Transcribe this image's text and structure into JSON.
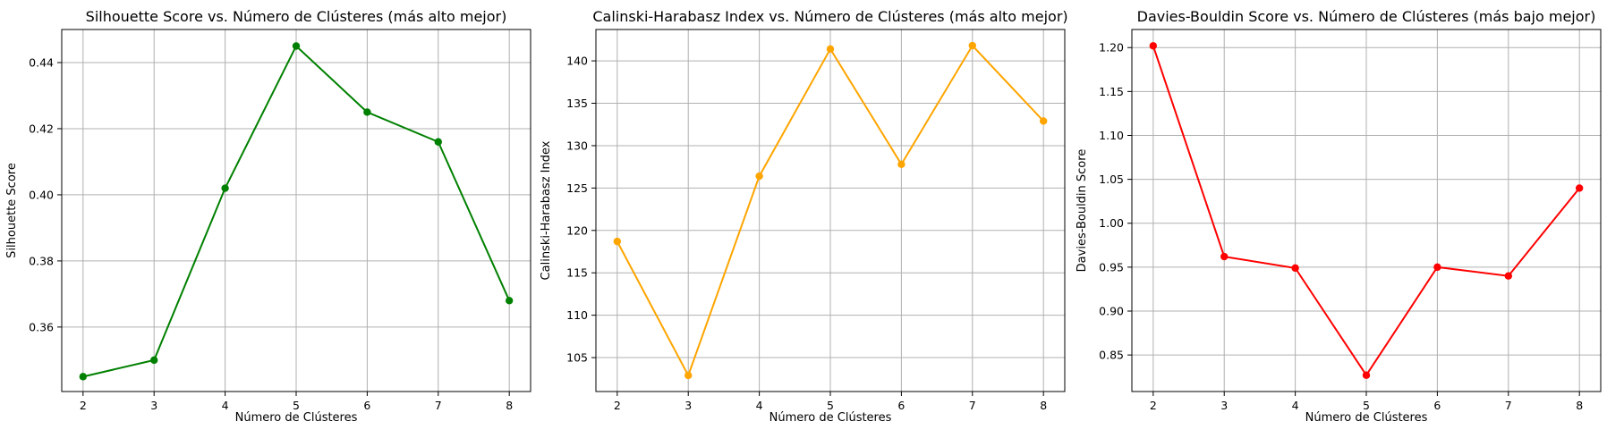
{
  "chart_data": [
    {
      "type": "line",
      "title": "Silhouette Score vs. Número de Clústeres (más alto mejor)",
      "xlabel": "Número de Clústeres",
      "ylabel": "Silhouette Score",
      "x": [
        2,
        3,
        4,
        5,
        6,
        7,
        8
      ],
      "series": [
        {
          "values": [
            0.345,
            0.35,
            0.402,
            0.445,
            0.425,
            0.416,
            0.368
          ],
          "color": "#008000"
        }
      ],
      "xticks": [
        2,
        3,
        4,
        5,
        6,
        7,
        8
      ],
      "yticks": [
        0.36,
        0.38,
        0.4,
        0.42,
        0.44
      ],
      "ytick_labels": [
        "0.36",
        "0.38",
        "0.40",
        "0.42",
        "0.44"
      ],
      "xlim": [
        1.7,
        8.3
      ],
      "ylim": [
        0.3405,
        0.45
      ],
      "grid": true
    },
    {
      "type": "line",
      "title": "Calinski-Harabasz Index vs. Número de Clústeres (más alto mejor)",
      "xlabel": "Número de Clústeres",
      "ylabel": "Calinski-Harabasz Index",
      "x": [
        2,
        3,
        4,
        5,
        6,
        7,
        8
      ],
      "series": [
        {
          "values": [
            118.7,
            102.9,
            126.4,
            141.4,
            127.8,
            141.8,
            132.9
          ],
          "color": "#FFA500"
        }
      ],
      "xticks": [
        2,
        3,
        4,
        5,
        6,
        7,
        8
      ],
      "yticks": [
        105,
        110,
        115,
        120,
        125,
        130,
        135,
        140
      ],
      "ytick_labels": [
        "105",
        "110",
        "115",
        "120",
        "125",
        "130",
        "135",
        "140"
      ],
      "xlim": [
        1.7,
        8.3
      ],
      "ylim": [
        101.0,
        143.7
      ],
      "grid": true
    },
    {
      "type": "line",
      "title": "Davies-Bouldin Score vs. Número de Clústeres (más bajo mejor)",
      "xlabel": "Número de Clústeres",
      "ylabel": "Davies-Bouldin Score",
      "x": [
        2,
        3,
        4,
        5,
        6,
        7,
        8
      ],
      "series": [
        {
          "values": [
            1.202,
            0.962,
            0.949,
            0.827,
            0.95,
            0.94,
            1.04
          ],
          "color": "#FF0000"
        }
      ],
      "xticks": [
        2,
        3,
        4,
        5,
        6,
        7,
        8
      ],
      "yticks": [
        0.85,
        0.9,
        0.95,
        1.0,
        1.05,
        1.1,
        1.15,
        1.2
      ],
      "ytick_labels": [
        "0.85",
        "0.90",
        "0.95",
        "1.00",
        "1.05",
        "1.10",
        "1.15",
        "1.20"
      ],
      "xlim": [
        1.7,
        8.3
      ],
      "ylim": [
        0.8084,
        1.2206
      ],
      "grid": true
    }
  ]
}
